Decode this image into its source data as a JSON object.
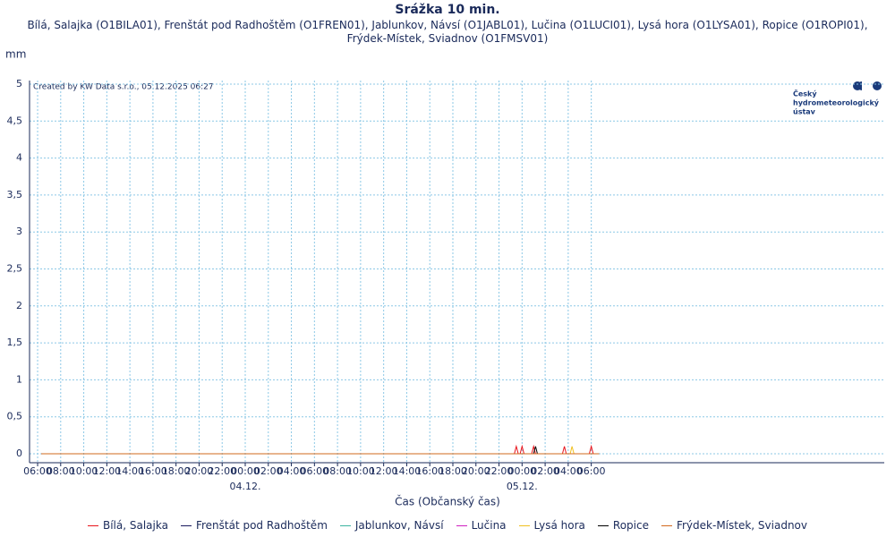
{
  "chart_data": {
    "type": "line",
    "title": "Srážka 10 min.",
    "subtitle": "Bílá, Salajka (O1BILA01), Frenštát pod Radhoštěm (O1FREN01), Jablunkov, Návsí (O1JABL01), Lučina (O1LUCI01), Lysá hora (O1LYSA01), Ropice (O1ROPI01), Frýdek-Místek, Sviadnov (O1FMSV01)",
    "y_label": "mm",
    "x_label": "Čas (Občanský čas)",
    "credit": "Created by KW Data s.r.o., 05.12.2025 06:27",
    "logo": [
      "Český",
      "hydrometeorologický",
      "ústav"
    ],
    "grid": true,
    "ylim": [
      0,
      5
    ],
    "yticks": [
      0,
      {
        "value": 0.5,
        "label": "0,5"
      },
      1,
      {
        "value": 1.5,
        "label": "1,5"
      },
      2,
      {
        "value": 2.5,
        "label": "2,5"
      },
      3,
      {
        "value": 3.5,
        "label": "3,5"
      },
      4,
      {
        "value": 4.5,
        "label": "4,5"
      },
      5
    ],
    "xlim": [
      -18.7,
      55.4
    ],
    "xticks": [
      {
        "value": -18,
        "label": "06:00"
      },
      {
        "value": -16,
        "label": "08:00"
      },
      {
        "value": -14,
        "label": "10:00"
      },
      {
        "value": -12,
        "label": "12:00"
      },
      {
        "value": -10,
        "label": "14:00"
      },
      {
        "value": -8,
        "label": "16:00"
      },
      {
        "value": -6,
        "label": "18:00"
      },
      {
        "value": -4,
        "label": "20:00"
      },
      {
        "value": -2,
        "label": "22:00"
      },
      {
        "value": 0,
        "label": "00:00"
      },
      {
        "value": 2,
        "label": "02:00"
      },
      {
        "value": 4,
        "label": "04:00"
      },
      {
        "value": 6,
        "label": "06:00"
      },
      {
        "value": 8,
        "label": "08:00"
      },
      {
        "value": 10,
        "label": "10:00"
      },
      {
        "value": 12,
        "label": "12:00"
      },
      {
        "value": 14,
        "label": "14:00"
      },
      {
        "value": 16,
        "label": "16:00"
      },
      {
        "value": 18,
        "label": "18:00"
      },
      {
        "value": 20,
        "label": "20:00"
      },
      {
        "value": 22,
        "label": "22:00"
      },
      {
        "value": 24,
        "label": "00:00"
      },
      {
        "value": 26,
        "label": "02:00"
      },
      {
        "value": 28,
        "label": "04:00"
      },
      {
        "value": 30,
        "label": "06:00"
      }
    ],
    "date_labels": [
      {
        "value": 0,
        "label": "04.12."
      },
      {
        "value": 24,
        "label": "05.12."
      }
    ],
    "series": [
      {
        "name": "Bílá, Salajka",
        "color": "#e8141c",
        "x": [
          -17.67,
          23.33,
          23.5,
          23.67,
          23.83,
          24,
          24.17,
          24.83,
          25,
          25.17,
          27.5,
          27.67,
          27.83,
          29.83,
          30,
          30.17,
          30.67
        ],
        "values": [
          0,
          0,
          0.1,
          0,
          0,
          0.1,
          0,
          0,
          0.1,
          0,
          0,
          0.1,
          0,
          0,
          0.1,
          0,
          0
        ]
      },
      {
        "name": "Frenštát pod Radhoštěm",
        "color": "#1a1a5e",
        "x": [
          -17.67,
          30.67
        ],
        "values": [
          0,
          0
        ]
      },
      {
        "name": "Jablunkov, Návsí",
        "color": "#3cb4a0",
        "x": [
          -17.67,
          30.67
        ],
        "values": [
          0,
          0
        ]
      },
      {
        "name": "Lučina",
        "color": "#d020c0",
        "x": [
          -17.67,
          30.67
        ],
        "values": [
          0,
          0
        ]
      },
      {
        "name": "Lysá hora",
        "color": "#f0c020",
        "x": [
          -17.67,
          28.17,
          28.33,
          28.5,
          30.67
        ],
        "values": [
          0,
          0,
          0.1,
          0,
          0
        ]
      },
      {
        "name": "Ropice",
        "color": "#000000",
        "x": [
          -17.67,
          25,
          25.17,
          25.33,
          30.67
        ],
        "values": [
          0,
          0,
          0.1,
          0,
          0
        ]
      },
      {
        "name": "Frýdek-Místek, Sviadnov",
        "color": "#d2691e",
        "x": [
          -17.67,
          30.67
        ],
        "values": [
          0,
          0
        ]
      }
    ]
  }
}
